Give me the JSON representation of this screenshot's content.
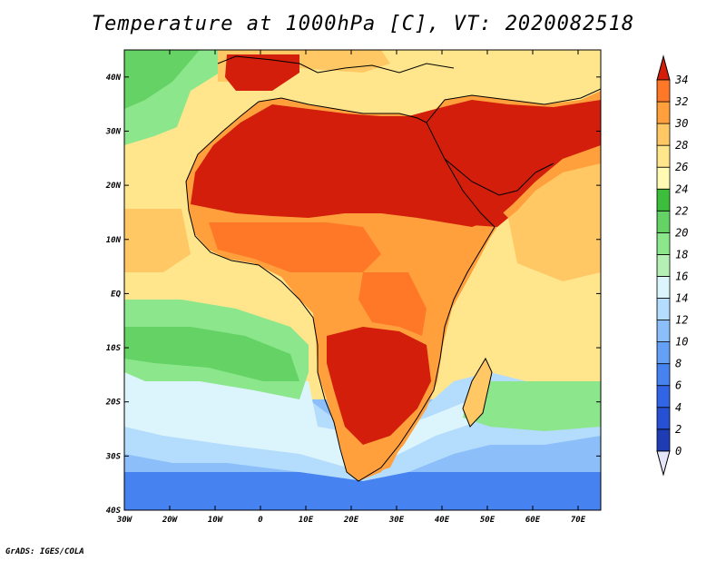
{
  "title": "Temperature at 1000hPa [C], VT: 2020082518",
  "footer": "GrADS: IGES/COLA",
  "map": {
    "lon_range": [
      -30,
      75
    ],
    "lat_range": [
      -40,
      45
    ],
    "x_ticks": [
      "30W",
      "20W",
      "10W",
      "0",
      "10E",
      "20E",
      "30E",
      "40E",
      "50E",
      "60E",
      "70E"
    ],
    "y_ticks": [
      "40S",
      "30S",
      "20S",
      "10S",
      "EQ",
      "10N",
      "20N",
      "30N",
      "40N"
    ]
  },
  "colorbar": {
    "labels": [
      "0",
      "2",
      "4",
      "6",
      "8",
      "10",
      "12",
      "14",
      "16",
      "18",
      "20",
      "22",
      "24",
      "26",
      "28",
      "30",
      "32",
      "34"
    ],
    "colors": [
      "#1e3cb4",
      "#2850d2",
      "#3264e6",
      "#4682f0",
      "#64a0f5",
      "#8cbefa",
      "#b4dcfc",
      "#dcf5fc",
      "#b4f0b4",
      "#8ce68c",
      "#64d264",
      "#3cbe3c",
      "#fffab4",
      "#ffe68c",
      "#ffc864",
      "#ffa03c",
      "#ff7828",
      "#f04614",
      "#d21e0a"
    ],
    "below_color": "#e6e6fa",
    "above_color": "#d21e0a"
  }
}
